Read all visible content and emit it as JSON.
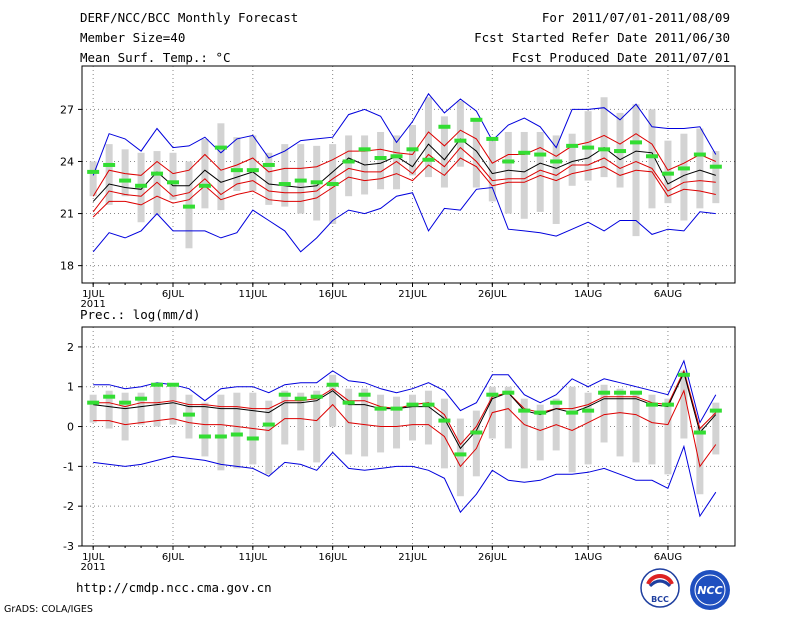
{
  "header": {
    "title": "DERF/NCC/BCC Monthly Forecast",
    "member_size": "Member Size=40",
    "temp_label": "Mean Surf. Temp.: °C",
    "period": "For 2011/07/01-2011/08/09",
    "refer_date": "Fcst Started Refer Date 2011/06/30",
    "produced_date": "Fcst Produced Date 2011/07/01"
  },
  "precip_title": "Prec.: log(mm/d)",
  "footer": {
    "url": "http://cmdp.ncc.cma.gov.cn",
    "credit": "GrADS: COLA/IGES"
  },
  "logos": {
    "bcc": "BCC",
    "ncc": "NCC"
  },
  "colors": {
    "envelope": "#0000dd",
    "spread": "#dd0000",
    "mean": "#000000",
    "observed": "#33dd33",
    "box": "#d3d3d3",
    "grid": "#888888"
  },
  "chart_data": [
    {
      "type": "line",
      "name": "temperature",
      "ylabel": "Mean Surf. Temp.: °C",
      "ylim": [
        17,
        29.5
      ],
      "yticks": [
        18,
        21,
        24,
        27
      ],
      "xlim": [
        0.3,
        41.2
      ],
      "xtick_positions": [
        1,
        6,
        11,
        16,
        21,
        26,
        32,
        37
      ],
      "xtick_labels": [
        "1JUL",
        "6JUL",
        "11JUL",
        "16JUL",
        "21JUL",
        "26JUL",
        "1AUG",
        "6AUG"
      ],
      "year_label": "2011",
      "x": [
        1,
        2,
        3,
        4,
        5,
        6,
        7,
        8,
        9,
        10,
        11,
        12,
        13,
        14,
        15,
        16,
        17,
        18,
        19,
        20,
        21,
        22,
        23,
        24,
        25,
        26,
        27,
        28,
        29,
        30,
        31,
        32,
        33,
        34,
        35,
        36,
        37,
        38,
        39,
        40
      ],
      "series": [
        {
          "name": "maximum",
          "values": [
            23.2,
            25.6,
            25.3,
            24.6,
            25.9,
            24.8,
            24.9,
            25.4,
            24.5,
            25.3,
            25.5,
            24.2,
            24.6,
            25.2,
            25.3,
            25.4,
            26.7,
            27.0,
            26.6,
            25.1,
            26.3,
            27.9,
            26.8,
            27.6,
            26.9,
            25.2,
            26.1,
            26.5,
            26.0,
            24.8,
            27.0,
            27.0,
            27.1,
            26.4,
            27.3,
            26.0,
            25.9,
            25.9,
            26.0,
            24.4
          ]
        },
        {
          "name": "upper",
          "values": [
            22.0,
            23.5,
            23.3,
            23.2,
            24.0,
            23.3,
            23.5,
            24.4,
            23.5,
            23.8,
            24.2,
            23.4,
            23.6,
            23.6,
            23.7,
            24.1,
            24.6,
            24.6,
            24.7,
            24.5,
            24.4,
            25.7,
            24.9,
            25.8,
            25.3,
            23.9,
            24.4,
            24.4,
            24.8,
            24.3,
            24.9,
            25.1,
            25.5,
            25.0,
            25.6,
            25.0,
            23.5,
            23.9,
            24.4,
            24.0
          ]
        },
        {
          "name": "mean",
          "values": [
            21.7,
            22.7,
            22.5,
            22.4,
            23.4,
            22.6,
            22.6,
            23.5,
            22.8,
            23.1,
            23.4,
            22.7,
            22.6,
            22.5,
            22.6,
            23.4,
            24.2,
            23.8,
            23.9,
            24.3,
            23.7,
            25.0,
            24.1,
            25.3,
            24.6,
            23.3,
            23.5,
            23.4,
            23.9,
            23.6,
            24.0,
            24.2,
            24.8,
            24.1,
            24.6,
            24.5,
            22.7,
            23.2,
            23.5,
            23.2
          ]
        },
        {
          "name": "lower",
          "values": [
            21.1,
            22.3,
            22.1,
            22.0,
            22.8,
            22.0,
            22.2,
            23.0,
            22.1,
            22.7,
            22.9,
            22.3,
            22.2,
            22.2,
            22.3,
            23.0,
            23.6,
            23.4,
            23.4,
            24.0,
            23.3,
            24.4,
            23.7,
            24.8,
            24.0,
            22.9,
            23.0,
            23.0,
            23.5,
            23.2,
            23.8,
            23.8,
            24.2,
            23.6,
            24.0,
            23.6,
            22.3,
            22.8,
            22.9,
            22.8
          ]
        },
        {
          "name": "lower-spread",
          "values": [
            20.8,
            21.7,
            21.7,
            21.5,
            22.0,
            21.6,
            21.8,
            22.6,
            21.8,
            22.1,
            22.3,
            21.8,
            21.7,
            21.7,
            21.9,
            22.5,
            23.1,
            22.9,
            23.0,
            23.3,
            22.9,
            23.8,
            23.2,
            24.2,
            23.7,
            22.6,
            22.8,
            22.8,
            23.2,
            22.9,
            23.3,
            23.5,
            23.7,
            23.2,
            23.5,
            23.4,
            22.0,
            22.4,
            22.3,
            22.1
          ]
        },
        {
          "name": "minimum",
          "values": [
            18.8,
            19.9,
            19.6,
            20.0,
            21.0,
            20.0,
            20.0,
            20.0,
            19.6,
            19.9,
            21.2,
            20.6,
            20.0,
            18.8,
            19.6,
            20.6,
            21.2,
            21.0,
            21.3,
            22.0,
            22.2,
            20.0,
            21.3,
            21.2,
            22.4,
            22.5,
            20.1,
            20.0,
            19.9,
            19.7,
            20.1,
            20.5,
            20.0,
            20.6,
            20.6,
            19.8,
            20.1,
            20.0,
            21.1,
            21.0
          ]
        },
        {
          "name": "observed",
          "values": [
            23.4,
            23.8,
            22.9,
            22.6,
            23.3,
            22.8,
            21.4,
            22.6,
            24.8,
            23.5,
            23.5,
            23.8,
            22.7,
            22.9,
            22.8,
            22.7,
            24.0,
            24.7,
            24.2,
            24.3,
            24.7,
            24.1,
            26.0,
            25.2,
            26.4,
            25.3,
            24.0,
            24.5,
            24.4,
            24.0,
            24.9,
            24.8,
            24.7,
            24.6,
            25.1,
            24.3,
            23.3,
            23.6,
            24.4,
            23.7
          ]
        },
        {
          "name": "box-high",
          "values": [
            24.0,
            25.0,
            24.7,
            24.5,
            24.6,
            24.5,
            24.0,
            25.3,
            26.2,
            25.4,
            25.5,
            24.5,
            25.0,
            25.0,
            24.9,
            25.0,
            25.5,
            25.5,
            25.7,
            25.5,
            26.1,
            27.7,
            26.6,
            27.5,
            26.4,
            25.3,
            25.7,
            25.7,
            25.7,
            25.5,
            25.6,
            26.9,
            27.7,
            26.8,
            27.3,
            27.0,
            25.2,
            25.6,
            25.9,
            24.6
          ]
        },
        {
          "name": "box-low",
          "values": [
            22.0,
            21.5,
            22.0,
            20.5,
            20.9,
            21.8,
            19.0,
            21.3,
            21.2,
            22.3,
            22.3,
            21.5,
            21.4,
            21.0,
            20.6,
            20.4,
            22.0,
            22.1,
            22.4,
            22.4,
            23.2,
            23.1,
            22.5,
            23.7,
            22.5,
            21.7,
            21.0,
            20.7,
            21.1,
            20.4,
            22.6,
            22.9,
            23.1,
            22.5,
            19.7,
            21.3,
            21.6,
            20.6,
            21.3,
            21.6
          ]
        }
      ]
    },
    {
      "type": "line",
      "name": "precipitation",
      "ylabel": "Prec.: log(mm/d)",
      "ylim": [
        -3,
        2.5
      ],
      "yticks": [
        -3,
        -2,
        -1,
        0,
        1,
        2
      ],
      "xlim": [
        0.3,
        41.2
      ],
      "xtick_positions": [
        1,
        6,
        11,
        16,
        21,
        26,
        32,
        37
      ],
      "xtick_labels": [
        "1JUL",
        "6JUL",
        "11JUL",
        "16JUL",
        "21JUL",
        "26JUL",
        "1AUG",
        "6AUG"
      ],
      "year_label": "2011",
      "x": [
        1,
        2,
        3,
        4,
        5,
        6,
        7,
        8,
        9,
        10,
        11,
        12,
        13,
        14,
        15,
        16,
        17,
        18,
        19,
        20,
        21,
        22,
        23,
        24,
        25,
        26,
        27,
        28,
        29,
        30,
        31,
        32,
        33,
        34,
        35,
        36,
        37,
        38,
        39,
        40
      ],
      "series": [
        {
          "name": "maximum",
          "values": [
            1.05,
            1.05,
            0.95,
            1.0,
            1.1,
            1.05,
            0.95,
            0.65,
            0.95,
            1.0,
            1.0,
            0.85,
            1.05,
            1.1,
            1.1,
            1.4,
            1.15,
            1.1,
            0.95,
            0.85,
            0.95,
            1.1,
            0.9,
            0.4,
            0.6,
            1.3,
            1.3,
            0.8,
            0.6,
            0.8,
            1.2,
            1.0,
            1.2,
            1.1,
            1.0,
            0.9,
            0.8,
            1.65,
            0.1,
            0.8
          ]
        },
        {
          "name": "upper",
          "values": [
            0.6,
            0.6,
            0.5,
            0.6,
            0.6,
            0.65,
            0.55,
            0.55,
            0.5,
            0.5,
            0.45,
            0.45,
            0.65,
            0.65,
            0.7,
            0.95,
            0.65,
            0.65,
            0.5,
            0.45,
            0.55,
            0.6,
            0.3,
            -0.45,
            0.0,
            0.75,
            0.85,
            0.45,
            0.35,
            0.45,
            0.45,
            0.55,
            0.75,
            0.75,
            0.75,
            0.6,
            0.55,
            1.4,
            -0.05,
            0.35
          ]
        },
        {
          "name": "mean",
          "values": [
            0.55,
            0.5,
            0.45,
            0.5,
            0.55,
            0.6,
            0.5,
            0.5,
            0.45,
            0.45,
            0.4,
            0.35,
            0.6,
            0.6,
            0.65,
            0.9,
            0.55,
            0.55,
            0.45,
            0.45,
            0.5,
            0.5,
            0.2,
            -0.55,
            -0.1,
            0.7,
            0.85,
            0.4,
            0.3,
            0.45,
            0.35,
            0.5,
            0.7,
            0.7,
            0.7,
            0.55,
            0.5,
            1.35,
            -0.15,
            0.3
          ]
        },
        {
          "name": "lower",
          "values": [
            0.15,
            0.15,
            0.05,
            0.1,
            0.15,
            0.2,
            0.1,
            0.05,
            0.05,
            0.0,
            -0.05,
            -0.1,
            0.2,
            0.2,
            0.15,
            0.55,
            0.1,
            0.05,
            0.0,
            0.0,
            0.05,
            0.05,
            -0.25,
            -1.0,
            -0.55,
            0.35,
            0.45,
            0.05,
            -0.1,
            0.05,
            -0.1,
            0.1,
            0.3,
            0.35,
            0.3,
            0.1,
            0.05,
            0.9,
            -1.0,
            -0.45
          ]
        },
        {
          "name": "minimum",
          "values": [
            -0.9,
            -0.95,
            -1.0,
            -0.95,
            -0.85,
            -0.75,
            -0.8,
            -0.85,
            -0.95,
            -1.0,
            -1.05,
            -1.25,
            -0.9,
            -0.95,
            -1.1,
            -0.65,
            -1.05,
            -1.1,
            -1.05,
            -1.0,
            -1.0,
            -1.1,
            -1.3,
            -2.15,
            -1.7,
            -1.1,
            -1.35,
            -1.4,
            -1.35,
            -1.2,
            -1.2,
            -1.15,
            -1.05,
            -1.2,
            -1.35,
            -1.35,
            -1.55,
            -0.5,
            -2.25,
            -1.65
          ]
        },
        {
          "name": "observed",
          "values": [
            0.6,
            0.75,
            0.6,
            0.7,
            1.05,
            1.05,
            0.3,
            -0.25,
            -0.25,
            -0.2,
            -0.3,
            0.05,
            0.8,
            0.7,
            0.75,
            1.05,
            0.6,
            0.8,
            0.45,
            0.45,
            0.55,
            0.55,
            0.15,
            -0.7,
            -0.15,
            0.8,
            0.85,
            0.4,
            0.35,
            0.6,
            0.35,
            0.4,
            0.85,
            0.85,
            0.85,
            0.55,
            0.55,
            1.3,
            -0.15,
            0.4
          ]
        },
        {
          "name": "box-high",
          "values": [
            0.8,
            0.9,
            0.85,
            0.85,
            1.0,
            1.0,
            0.8,
            0.6,
            0.8,
            0.85,
            0.85,
            0.65,
            0.9,
            0.85,
            0.9,
            1.3,
            0.95,
            0.95,
            0.8,
            0.75,
            0.8,
            0.9,
            0.7,
            0.2,
            0.4,
            1.0,
            1.0,
            0.7,
            0.55,
            0.7,
            1.0,
            0.85,
            1.05,
            0.95,
            0.9,
            0.8,
            0.7,
            1.4,
            0.0,
            0.6
          ]
        },
        {
          "name": "box-low",
          "values": [
            0.1,
            -0.05,
            -0.35,
            0.05,
            0.0,
            0.05,
            -0.3,
            -0.75,
            -1.1,
            -1.05,
            -0.95,
            -1.2,
            -0.45,
            -0.6,
            -0.9,
            0.0,
            -0.7,
            -0.75,
            -0.65,
            -0.55,
            -0.35,
            -0.45,
            -1.05,
            -1.75,
            -1.25,
            -0.3,
            -0.55,
            -1.05,
            -0.85,
            -0.6,
            -1.15,
            -0.95,
            -0.4,
            -0.75,
            -0.9,
            -0.95,
            -1.2,
            -0.3,
            -1.7,
            -0.7
          ]
        }
      ]
    }
  ]
}
